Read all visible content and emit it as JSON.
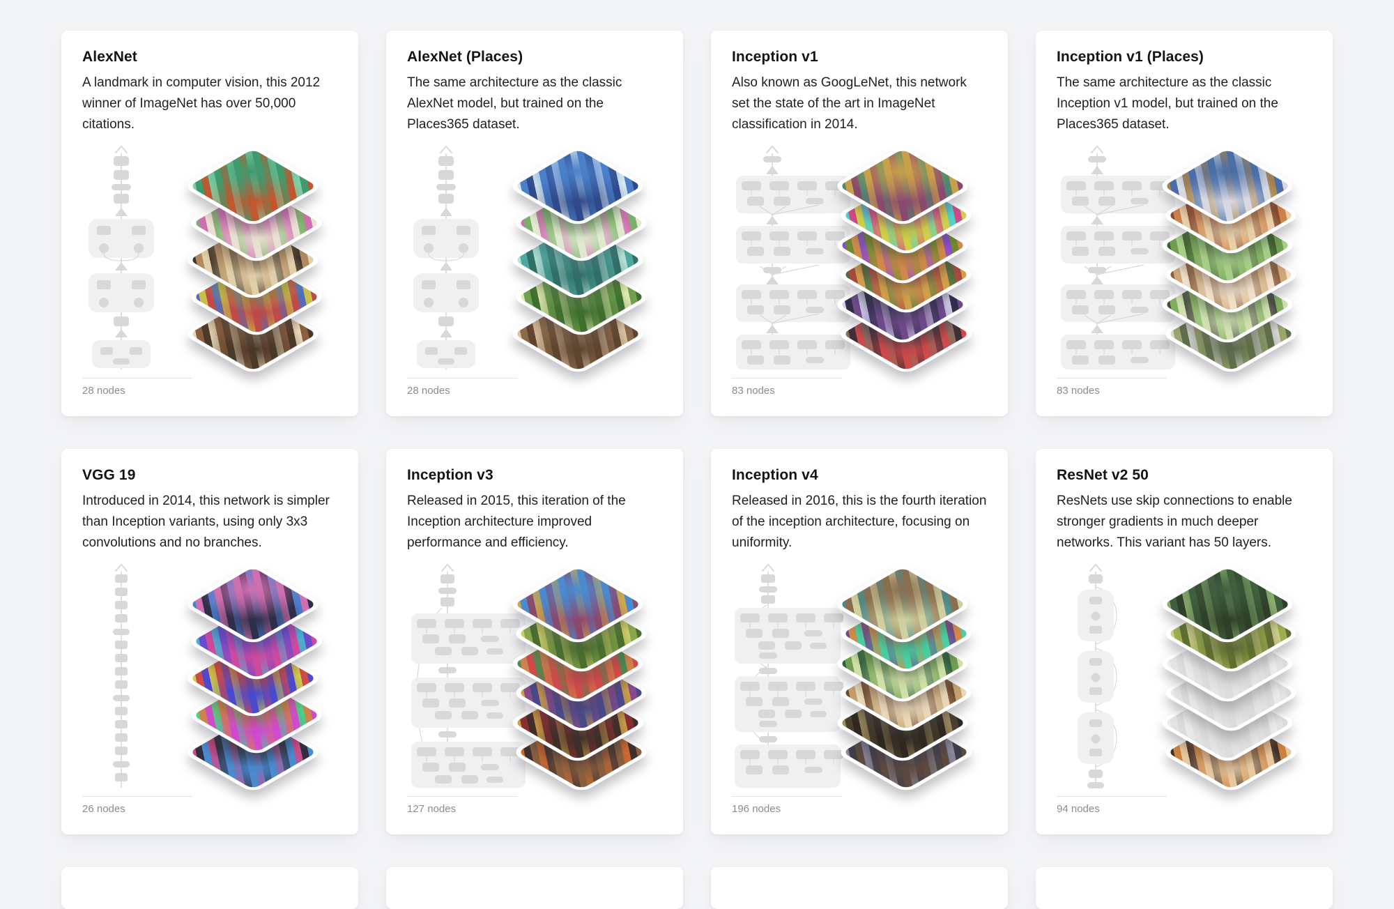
{
  "theme": {
    "page_background": "#f4f5f7",
    "card_background": "#ffffff",
    "title_color": "#141414",
    "description_color": "#212121",
    "node_count_color": "#8c8c8c",
    "graph_node_color": "#d8d8da",
    "graph_block_color": "#f0f0f1",
    "baseline_color": "#e2e2e2"
  },
  "cards": [
    {
      "title": "AlexNet",
      "description": "A landmark in computer vision, this 2012 winner of ImageNet has over 50,000 citations.",
      "node_count": "28 nodes",
      "graph": "alexnet",
      "graph_icon": "architecture-graph-icon",
      "stack_icon": "feature-visualization-stack",
      "stack_layers": [
        [
          "#3f9b6e",
          "#7fd0a8",
          "#c0572f"
        ],
        [
          "#cf6fb0",
          "#7ab06a",
          "#e8e0d0"
        ],
        [
          "#b08a5f",
          "#3f3428",
          "#e0cfa8"
        ],
        [
          "#c9bf4a",
          "#4a6fbf",
          "#bf4a4a"
        ],
        [
          "#8a5f3f",
          "#e8d8b8",
          "#4a3828"
        ]
      ]
    },
    {
      "title": "AlexNet (Places)",
      "description": "The same architecture as the classic AlexNet model, but trained on the Places365 dataset.",
      "node_count": "28 nodes",
      "graph": "alexnet",
      "graph_icon": "architecture-graph-icon",
      "stack_icon": "feature-visualization-stack",
      "stack_layers": [
        [
          "#4a7fc9",
          "#d8e8f0",
          "#2f4a8a"
        ],
        [
          "#7ab06a",
          "#cf6fb0",
          "#e0e8d0"
        ],
        [
          "#4fa89f",
          "#b8e0d8",
          "#2f6f68"
        ],
        [
          "#6fa04f",
          "#e0e8b0",
          "#3f6f2f"
        ],
        [
          "#8a6a4a",
          "#d8c09f",
          "#5f4530"
        ]
      ]
    },
    {
      "title": "Inception v1",
      "description": "Also known as GoogLeNet, this network set the state of the art in ImageNet classification in 2014.",
      "node_count": "83 nodes",
      "graph": "inception-v1",
      "graph_icon": "architecture-graph-icon",
      "stack_icon": "feature-visualization-stack",
      "stack_layers": [
        [
          "#c99f4a",
          "#4a8a6f",
          "#8a4a6f"
        ],
        [
          "#cf4a8a",
          "#4acfcf",
          "#cfcf4a"
        ],
        [
          "#6f8a2f",
          "#8a4acf",
          "#cf8a4a"
        ],
        [
          "#a84a3f",
          "#4a6f3f",
          "#cf9f4a"
        ],
        [
          "#2f2f4a",
          "#cfcfe8",
          "#6f4a8a"
        ],
        [
          "#3f2f38",
          "#8a6f5f",
          "#cf4a4a"
        ]
      ]
    },
    {
      "title": "Inception v1 (Places)",
      "description": "The same architecture as the classic Inception v1 model, but trained on the Places365 dataset.",
      "node_count": "83 nodes",
      "graph": "inception-v1",
      "graph_icon": "architecture-graph-icon",
      "stack_icon": "feature-visualization-stack",
      "stack_layers": [
        [
          "#4a6fa8",
          "#a8824a",
          "#d8d8e0"
        ],
        [
          "#cf824a",
          "#8a4a2f",
          "#e8d0a8"
        ],
        [
          "#6f9f4f",
          "#3f5f2f",
          "#a8cf8a"
        ],
        [
          "#d0a878",
          "#8a5f3f",
          "#f0e0c8"
        ],
        [
          "#7faf5f",
          "#4a4a42",
          "#d0e0b0"
        ],
        [
          "#9aa86f",
          "#d8d8d8",
          "#5f6f4a"
        ]
      ]
    },
    {
      "title": "VGG 19",
      "description": "Introduced in 2014, this network is simpler than Inception variants, using only 3x3 convolutions and no branches.",
      "node_count": "26 nodes",
      "graph": "vgg",
      "graph_icon": "architecture-graph-icon",
      "stack_icon": "feature-visualization-stack",
      "stack_layers": [
        [
          "#cf6fb0",
          "#4a7fcf",
          "#2f2f4a"
        ],
        [
          "#6a4acf",
          "#4ab0cf",
          "#cf4a9f"
        ],
        [
          "#cf4a4a",
          "#cfcf4a",
          "#4a4acf"
        ],
        [
          "#cf824a",
          "#4acf8a",
          "#cf4acf"
        ],
        [
          "#2f2f3f",
          "#cf4a8a",
          "#4a8acf"
        ]
      ]
    },
    {
      "title": "Inception v3",
      "description": "Released in 2015, this iteration of the Inception architecture improved performance and efficiency.",
      "node_count": "127 nodes",
      "graph": "inception-v3",
      "graph_icon": "architecture-graph-icon",
      "stack_icon": "feature-visualization-stack",
      "stack_layers": [
        [
          "#4a8acf",
          "#cfa84a",
          "#8a4a6f"
        ],
        [
          "#8aa84f",
          "#cfcf6a",
          "#4a6f2f"
        ],
        [
          "#cf824a",
          "#4a8a4f",
          "#cf4a4a"
        ],
        [
          "#8a4a8a",
          "#cf9f4a",
          "#4a4a8a"
        ],
        [
          "#8a2f2f",
          "#cf9f4a",
          "#3f2f28"
        ],
        [
          "#3f2f2f",
          "#cf6a2f",
          "#8a5f3f"
        ]
      ]
    },
    {
      "title": "Inception v4",
      "description": "Released in 2016, this is the fourth iteration of the inception architecture, focusing on uniformity.",
      "node_count": "196 nodes",
      "graph": "inception-v4",
      "graph_icon": "architecture-graph-icon",
      "stack_icon": "feature-visualization-stack",
      "stack_layers": [
        [
          "#8a6f4f",
          "#4a8a8a",
          "#cfcf9f"
        ],
        [
          "#cf8a4a",
          "#6f4a8a",
          "#4acf9f"
        ],
        [
          "#6f9f4f",
          "#2f5f3f",
          "#cfe0a8"
        ],
        [
          "#c4a06f",
          "#6f4a2f",
          "#e8d8b8"
        ],
        [
          "#4a3f2f",
          "#9f8a5f",
          "#2f2820"
        ],
        [
          "#3f3f4a",
          "#8a8a9f",
          "#5f4a3f"
        ]
      ]
    },
    {
      "title": "ResNet v2 50",
      "description": "ResNets use skip connections to enable stronger gradients in much deeper networks. This variant has 50 layers.",
      "node_count": "94 nodes",
      "graph": "resnet",
      "graph_icon": "architecture-graph-icon",
      "stack_icon": "feature-visualization-stack",
      "stack_layers": [
        [
          "#3f5f3f",
          "#8aaf6f",
          "#2f3f28"
        ],
        [
          "#9faf4f",
          "#cfcf8a",
          "#5f6f2f"
        ],
        [
          "#e4e4e4",
          "#ededed",
          "#dcdcdc"
        ],
        [
          "#e3e3e3",
          "#ececec",
          "#dbdbdb"
        ],
        [
          "#e4e4e4",
          "#ededed",
          "#dcdcdc"
        ],
        [
          "#cf823f",
          "#3f2f28",
          "#e8c99f"
        ]
      ]
    }
  ]
}
